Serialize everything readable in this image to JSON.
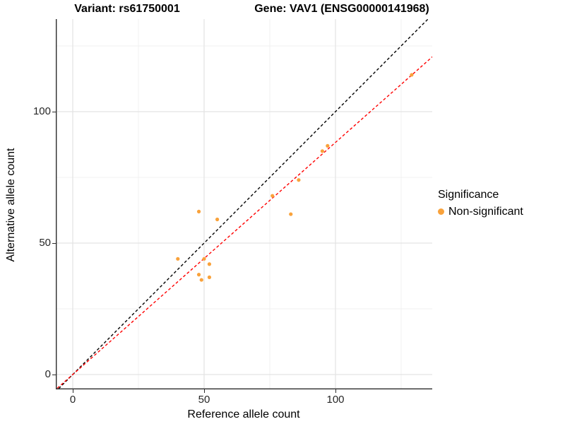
{
  "titles": {
    "left": "Variant: rs61750001",
    "right": "Gene: VAV1 (ENSG00000141968)"
  },
  "chart_data": {
    "type": "scatter",
    "title": "Variant: rs61750001 — Gene: VAV1 (ENSG00000141968)",
    "xlabel": "Reference allele count",
    "ylabel": "Alternative allele count",
    "xlim": [
      -6.5,
      136.8
    ],
    "ylim": [
      -5.7,
      135.2
    ],
    "xticks": [
      0,
      50,
      100
    ],
    "yticks": [
      0,
      50,
      100
    ],
    "x_minor_ticks": [
      25,
      75,
      125
    ],
    "y_minor_ticks": [
      25,
      75,
      125
    ],
    "grid": true,
    "legend_position": "right",
    "series": [
      {
        "name": "Non-significant",
        "color": "#F9A23B",
        "points": [
          [
            40,
            44
          ],
          [
            50,
            44
          ],
          [
            52,
            42
          ],
          [
            48,
            38
          ],
          [
            49,
            36
          ],
          [
            52,
            37
          ],
          [
            48,
            62
          ],
          [
            55,
            59
          ],
          [
            76,
            68
          ],
          [
            83,
            61
          ],
          [
            86,
            74
          ],
          [
            95,
            85
          ],
          [
            97,
            87
          ],
          [
            129,
            114
          ]
        ]
      }
    ],
    "lines": [
      {
        "name": "identity-line",
        "slope": 1.0,
        "intercept": 0,
        "color": "#000000",
        "style": "dashed"
      },
      {
        "name": "fit-line",
        "slope": 0.883,
        "intercept": 0,
        "color": "#FF0000",
        "style": "dashed"
      }
    ]
  },
  "legend": {
    "title": "Significance",
    "items": [
      {
        "label": "Non-significant",
        "color": "#F9A23B"
      }
    ]
  },
  "colors": {
    "point": "#F9A23B",
    "fit_line": "#FF0000",
    "identity_line": "#000000",
    "grid_major": "#E3E3E3",
    "grid_minor": "#F0F0F0",
    "axis": "#2b2b2b"
  }
}
